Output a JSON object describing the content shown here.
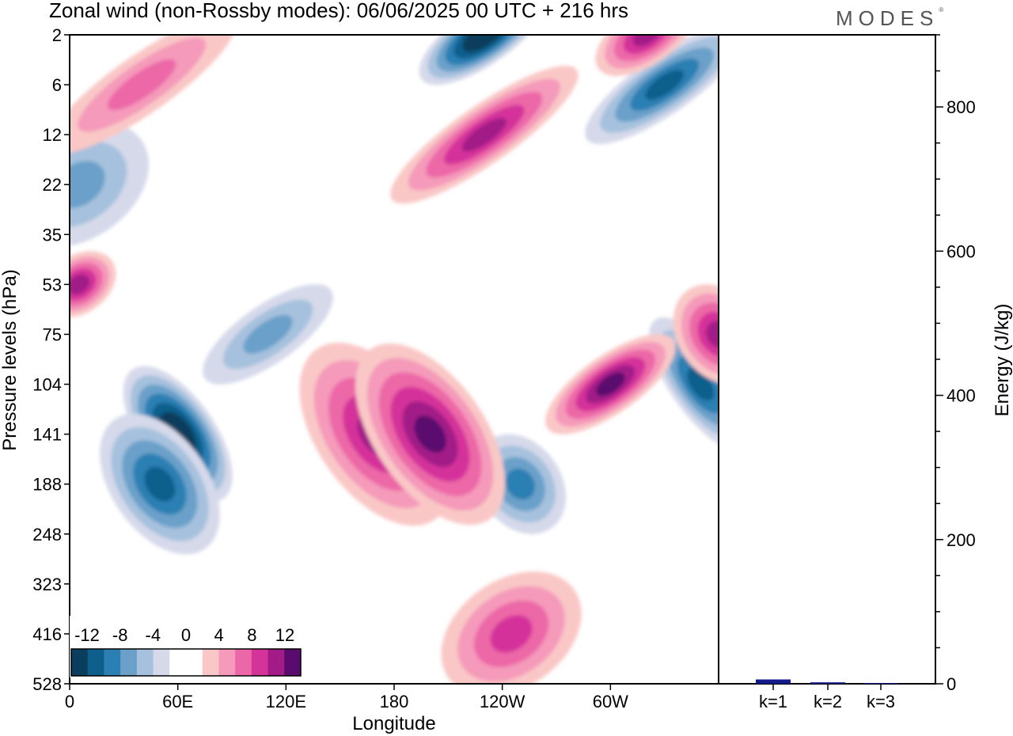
{
  "header": {
    "title": "Zonal wind (non-Rossby modes):  06/06/2025  00 UTC  + 216 hrs",
    "brand": "MODES",
    "brand_mark": "®"
  },
  "colors": {
    "neg": [
      "#0b3d5c",
      "#0f5f8c",
      "#2b7fb3",
      "#6aa0c9",
      "#a6c1dd",
      "#d5d9ea"
    ],
    "zero": "#ffffff",
    "pos": [
      "#f9c8c6",
      "#f59aba",
      "#ec67a7",
      "#d4339a",
      "#a21b87",
      "#5a0b6e"
    ],
    "bar": "#151a8a"
  },
  "chart_data": [
    {
      "type": "heatmap",
      "title": "Zonal wind (non-Rossby modes):  06/06/2025  00 UTC  + 216 hrs",
      "xlabel": "Longitude",
      "ylabel": "Pressure levels (hPa)",
      "x_ticks": [
        "0",
        "60E",
        "120E",
        "180",
        "120W",
        "60W"
      ],
      "x_tick_values": [
        0,
        60,
        120,
        180,
        240,
        300
      ],
      "xlim": [
        0,
        360
      ],
      "y_ticks": [
        "2",
        "6",
        "12",
        "22",
        "35",
        "53",
        "75",
        "104",
        "141",
        "188",
        "248",
        "323",
        "416",
        "528"
      ],
      "y_scale": "pressure levels (log-like)",
      "colorbar": {
        "labels": [
          "-12",
          "-8",
          "-4",
          "0",
          "4",
          "8",
          "12"
        ],
        "levels": [
          -12,
          -10,
          -8,
          -6,
          -4,
          -2,
          0,
          2,
          4,
          6,
          8,
          10,
          12
        ]
      },
      "features": [
        {
          "sign": "neg",
          "lon": 60,
          "level": 141,
          "lon_width": 18,
          "level_span": 3,
          "peak": -12
        },
        {
          "sign": "neg",
          "lon": 50,
          "level": 188,
          "lon_width": 24,
          "level_span": 3,
          "peak": -8
        },
        {
          "sign": "neg",
          "lon": 110,
          "level": 75,
          "lon_width": 40,
          "level_span": 1,
          "peak": -4
        },
        {
          "sign": "neg",
          "lon": 230,
          "level": 2,
          "lon_width": 40,
          "level_span": 1,
          "peak": -12
        },
        {
          "sign": "neg",
          "lon": 330,
          "level": 6,
          "lon_width": 50,
          "level_span": 1,
          "peak": -8
        },
        {
          "sign": "neg",
          "lon": 250,
          "level": 188,
          "lon_width": 20,
          "level_span": 2,
          "peak": -6
        },
        {
          "sign": "neg",
          "lon": 350,
          "level": 104,
          "lon_width": 14,
          "level_span": 3,
          "peak": -8
        },
        {
          "sign": "neg",
          "lon": 5,
          "level": 22,
          "lon_width": 40,
          "level_span": 2,
          "peak": -4
        },
        {
          "sign": "pos",
          "lon": 170,
          "level": 141,
          "lon_width": 30,
          "level_span": 4,
          "peak": 8
        },
        {
          "sign": "pos",
          "lon": 200,
          "level": 141,
          "lon_width": 28,
          "level_span": 4,
          "peak": 10
        },
        {
          "sign": "pos",
          "lon": 300,
          "level": 104,
          "lon_width": 40,
          "level_span": 1,
          "peak": 10
        },
        {
          "sign": "pos",
          "lon": 230,
          "level": 12,
          "lon_width": 60,
          "level_span": 1,
          "peak": 8
        },
        {
          "sign": "pos",
          "lon": 245,
          "level": 416,
          "lon_width": 40,
          "level_span": 2,
          "peak": 6
        },
        {
          "sign": "pos",
          "lon": 5,
          "level": 53,
          "lon_width": 20,
          "level_span": 1,
          "peak": 8
        },
        {
          "sign": "pos",
          "lon": 360,
          "level": 75,
          "lon_width": 20,
          "level_span": 2,
          "peak": 8
        },
        {
          "sign": "pos",
          "lon": 320,
          "level": 2,
          "lon_width": 30,
          "level_span": 1,
          "peak": 8
        },
        {
          "sign": "pos",
          "lon": 40,
          "level": 6,
          "lon_width": 60,
          "level_span": 1,
          "peak": 4
        }
      ]
    },
    {
      "type": "bar",
      "ylabel": "Energy (J/kg)",
      "categories": [
        "k=1",
        "k=2",
        "k=3"
      ],
      "values": [
        6,
        2,
        1
      ],
      "ylim": [
        0,
        900
      ],
      "y_ticks": [
        "0",
        "200",
        "400",
        "600",
        "800"
      ]
    }
  ]
}
